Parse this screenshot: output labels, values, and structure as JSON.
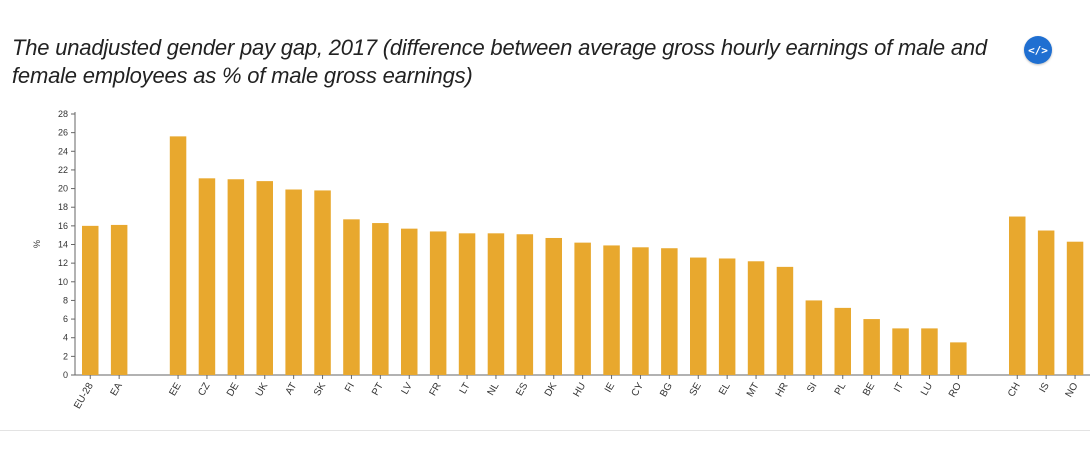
{
  "header": {
    "title": "The unadjusted gender pay gap, 2017 (difference between average gross hourly earnings of male and female employees as % of male gross earnings)",
    "embed_label": "</>"
  },
  "colors": {
    "bar": "#E8A82E",
    "embed_button": "#1f6fd1"
  },
  "chart_data": {
    "type": "bar",
    "title": "The unadjusted gender pay gap, 2017 (difference between average gross hourly earnings of male and female employees as % of male gross earnings)",
    "xlabel": "",
    "ylabel": "%",
    "ylim": [
      0,
      28
    ],
    "yticks": [
      0,
      2,
      4,
      6,
      8,
      10,
      12,
      14,
      16,
      18,
      20,
      22,
      24,
      26,
      28
    ],
    "grid": false,
    "groups": [
      {
        "categories": [
          "EU-28",
          "EA"
        ],
        "values": [
          16.0,
          16.1
        ]
      },
      {
        "categories": [
          "EE",
          "CZ",
          "DE",
          "UK",
          "AT",
          "SK",
          "FI",
          "PT",
          "LV",
          "FR",
          "LT",
          "NL",
          "ES",
          "DK",
          "HU",
          "IE",
          "CY",
          "BG",
          "SE",
          "EL",
          "MT",
          "HR",
          "SI",
          "PL",
          "BE",
          "IT",
          "LU",
          "RO"
        ],
        "values": [
          25.6,
          21.1,
          21.0,
          20.8,
          19.9,
          19.8,
          16.7,
          16.3,
          15.7,
          15.4,
          15.2,
          15.2,
          15.1,
          14.7,
          14.2,
          13.9,
          13.7,
          13.6,
          12.6,
          12.5,
          12.2,
          11.6,
          8.0,
          7.2,
          6.0,
          5.0,
          5.0,
          3.5
        ]
      },
      {
        "categories": [
          "CH",
          "IS",
          "NO"
        ],
        "values": [
          17.0,
          15.5,
          14.3
        ]
      }
    ]
  }
}
